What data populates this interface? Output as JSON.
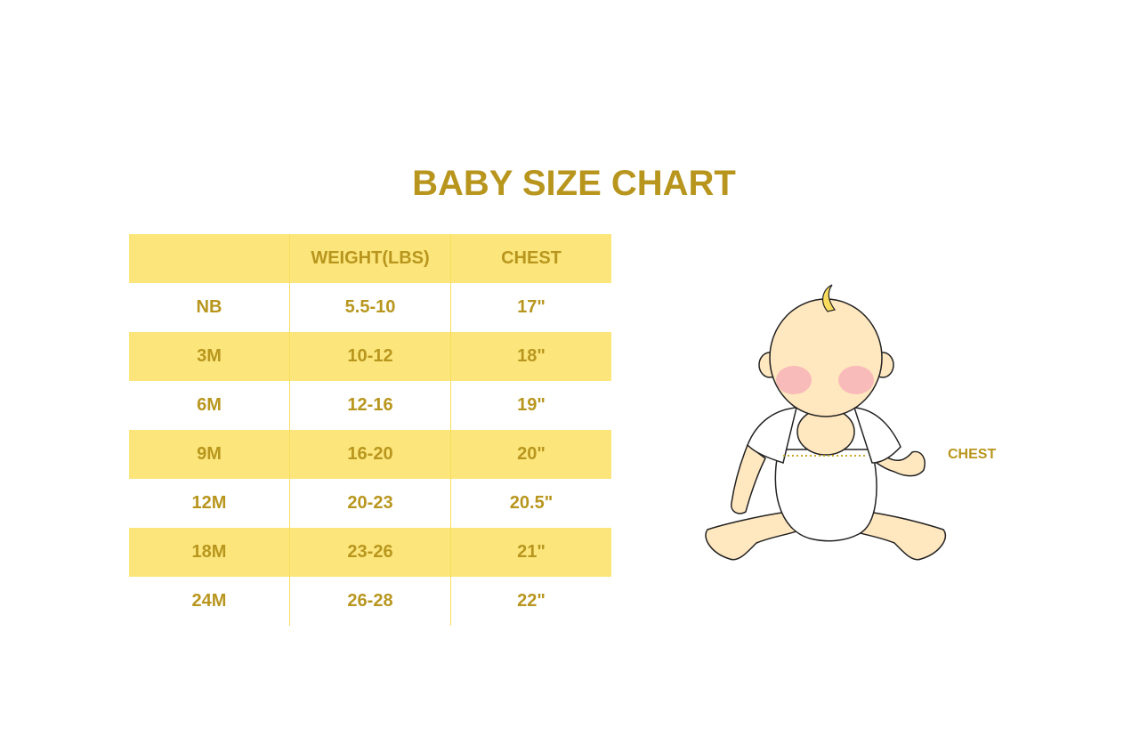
{
  "title": "BABY SIZE CHART",
  "table": {
    "headers": [
      "",
      "WEIGHT(LBS)",
      "CHEST"
    ],
    "rows": [
      [
        "NB",
        "5.5-10",
        "17\""
      ],
      [
        "3M",
        "10-12",
        "18\""
      ],
      [
        "6M",
        "12-16",
        "19\""
      ],
      [
        "9M",
        "16-20",
        "20\""
      ],
      [
        "12M",
        "20-23",
        "20.5\""
      ],
      [
        "18M",
        "23-26",
        "21\""
      ],
      [
        "24M",
        "26-28",
        "22\""
      ]
    ]
  },
  "illustration": {
    "chest_label": "CHEST"
  },
  "colors": {
    "text": "#b8961e",
    "stripe": "#fce67c",
    "skin": "#ffe7bf",
    "cheek": "#f7a8b8"
  }
}
